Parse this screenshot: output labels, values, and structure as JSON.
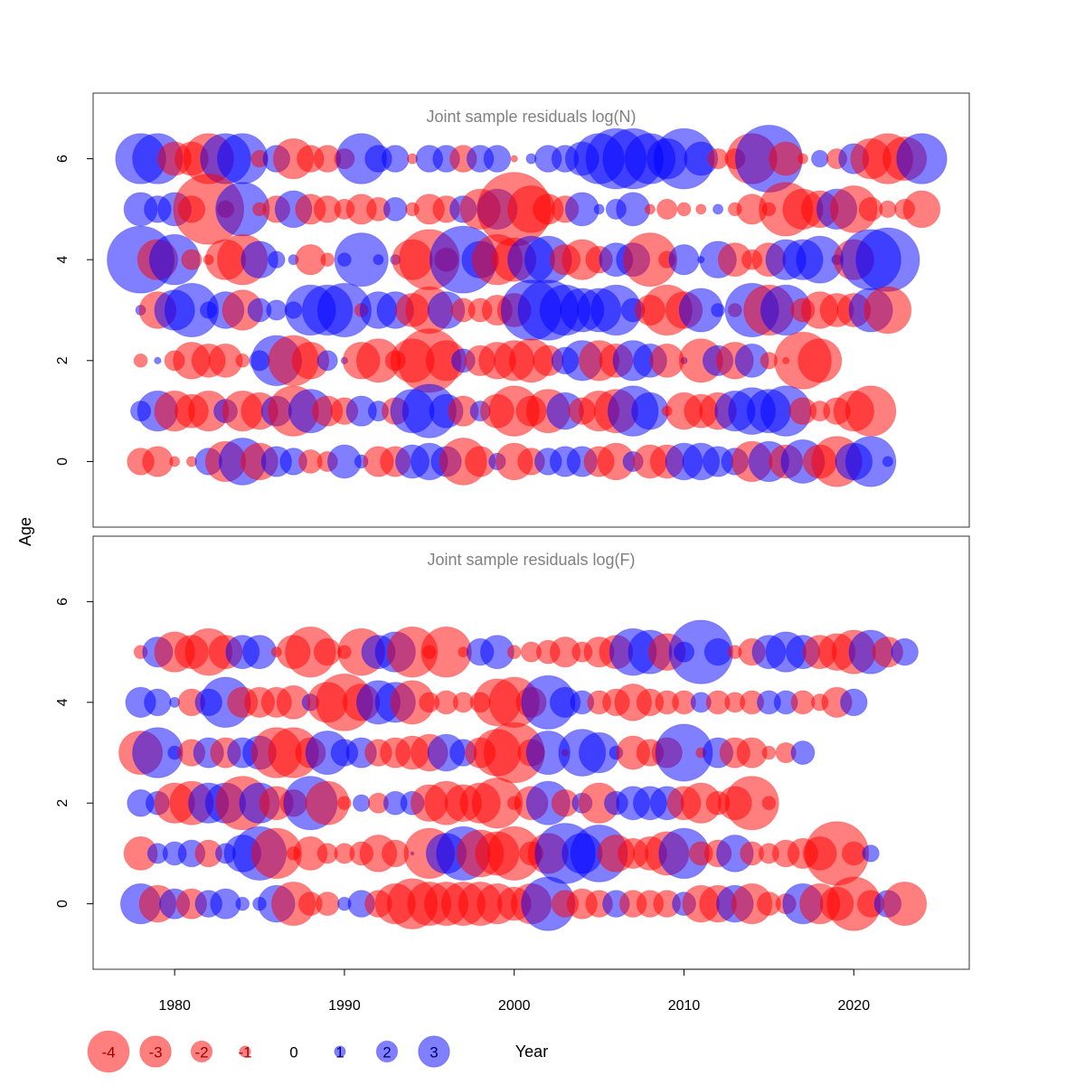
{
  "chart_data": {
    "type": "scatter",
    "subtype": "bubble-residuals",
    "xlabel": "Year",
    "ylabel": "Age",
    "x_ticks": [
      1980,
      1990,
      2000,
      2010,
      2020
    ],
    "y_ticks": [
      0,
      2,
      4,
      6
    ],
    "xlim": [
      1975.2,
      2026.8
    ],
    "ylim": [
      -1.3,
      7.3
    ],
    "grid": false,
    "colors": {
      "negative": "#ff0000",
      "positive": "#0000ff"
    },
    "size_scale_note": "circle radius proportional to |residual|",
    "legend": {
      "placement": "bottom-left",
      "entries": [
        {
          "label": "-4",
          "value": -4
        },
        {
          "label": "-3",
          "value": -3
        },
        {
          "label": "-2",
          "value": -2
        },
        {
          "label": "-1",
          "value": -1
        },
        {
          "label": "0",
          "value": 0
        },
        {
          "label": "1",
          "value": 1
        },
        {
          "label": "2",
          "value": 2
        },
        {
          "label": "3",
          "value": 3
        }
      ]
    },
    "panels": [
      {
        "title": "Joint sample residuals log(N)",
        "start_year": 1978,
        "opacity": 0.5,
        "series": [
          {
            "age": 6,
            "values": [
              1.5,
              1.5,
              -1,
              -1,
              -1.5,
              1.5,
              1.5,
              -0.5,
              0.8,
              -1.2,
              -0.8,
              -0.8,
              -0.6,
              1.5,
              0.8,
              0.8,
              -0.3,
              0.8,
              0.8,
              -0.8,
              0.8,
              0.8,
              -0.2,
              0.3,
              0.8,
              0.8,
              1,
              1.5,
              1.8,
              1.8,
              1.5,
              1.2,
              1.8,
              1,
              -0.6,
              -0.6,
              -1.5,
              2,
              -1,
              -0.3,
              0.5,
              -0.6,
              0.9,
              -1.2,
              -1.5,
              -1.3,
              1.5
            ]
          },
          {
            "age": 5,
            "values": [
              1,
              0.8,
              1,
              -0.8,
              -2.1,
              -0.5,
              1.6,
              -0.4,
              -0.8,
              1.1,
              -0.9,
              -0.8,
              -0.6,
              -0.9,
              -0.7,
              0.7,
              -0.4,
              -0.9,
              -0.8,
              0.8,
              -1.2,
              1.2,
              -2.2,
              -1.4,
              -0.9,
              -0.8,
              1,
              0.3,
              0.6,
              1,
              -0.3,
              -0.6,
              -0.4,
              -0.3,
              0.3,
              -0.4,
              -0.9,
              -0.4,
              -1.6,
              -1.2,
              -1.1,
              1.2,
              -1.4,
              -0.7,
              -0.5,
              -0.6,
              -1.1
            ]
          },
          {
            "age": 4,
            "values": [
              2,
              -1.2,
              1.5,
              -0.6,
              -0.3,
              -1.2,
              -1.5,
              1.1,
              0.5,
              0.3,
              -0.9,
              -0.4,
              0.4,
              1.6,
              0.3,
              0.3,
              -1.2,
              -1.8,
              -0.7,
              2,
              1.1,
              -1.5,
              -1.3,
              1.4,
              1.4,
              -0.9,
              -1.2,
              -0.8,
              1,
              1,
              -1.6,
              -0.5,
              0.9,
              0.2,
              1.1,
              -1,
              -0.6,
              -1,
              1.2,
              1.2,
              1.4,
              0.3,
              -1.2,
              1.8,
              1.9
            ]
          },
          {
            "age": 3,
            "values": [
              0.3,
              -1.1,
              1.2,
              1.6,
              0.5,
              1.1,
              -1.2,
              0.7,
              0.6,
              0.5,
              1.5,
              1.5,
              1.6,
              -0.4,
              1.1,
              1.1,
              -1,
              -1.4,
              1.1,
              -0.7,
              -0.7,
              -0.9,
              -1,
              1.8,
              1.8,
              1.5,
              1.3,
              1.3,
              1.5,
              0.7,
              -0.9,
              -1.5,
              -1.1,
              1.3,
              0.4,
              -0.4,
              1.6,
              -1.5,
              1.5,
              -0.7,
              -1.1,
              -1,
              -1,
              1.3,
              -1.4
            ]
          },
          {
            "age": 2,
            "values": [
              -0.4,
              0.2,
              -0.6,
              -1.1,
              -1,
              -1,
              -0.4,
              0.6,
              1.5,
              -1.5,
              -1.1,
              0.6,
              0.2,
              -1.1,
              -1.3,
              -0.6,
              -1.3,
              -1.9,
              -1.2,
              0.7,
              -0.9,
              -1.1,
              -1.2,
              -1.3,
              -0.9,
              0.8,
              1.2,
              -1.2,
              -1,
              1.2,
              1,
              -1,
              0.2,
              -1.3,
              0.9,
              -1.1,
              1,
              -0.5,
              -0.2,
              -1.7,
              -1.3
            ]
          },
          {
            "age": 1,
            "values": [
              0.6,
              1.2,
              -1.2,
              -1,
              -1.2,
              0.7,
              -1.2,
              -1.1,
              0.9,
              -1.5,
              1.3,
              -0.9,
              -0.8,
              0.9,
              0.6,
              -0.8,
              1.3,
              1.6,
              1,
              -0.9,
              0.6,
              -1,
              -1.5,
              -0.9,
              -1.3,
              1.1,
              -0.8,
              -1.2,
              -1.3,
              1.5,
              1.1,
              -0.3,
              -1.1,
              -1,
              -1.1,
              1.2,
              1.4,
              1.3,
              1.5,
              -0.8,
              -0.6,
              -0.8,
              -1.2,
              -1.5
            ]
          },
          {
            "age": 0,
            "values": [
              -0.8,
              -0.9,
              -0.3,
              -0.3,
              0.8,
              -1.2,
              1.4,
              -1.1,
              0.9,
              0.8,
              -0.7,
              -0.6,
              1,
              0.4,
              -0.9,
              -0.9,
              1,
              1.1,
              0.9,
              -1.4,
              -0.9,
              0.5,
              -1.1,
              -0.8,
              0.8,
              0.9,
              0.9,
              -0.9,
              -1.1,
              0.6,
              -1,
              -1,
              1.1,
              1.1,
              0.9,
              0.8,
              -1.2,
              1.2,
              -1,
              1.3,
              -1,
              -1.5,
              1.1,
              1.5,
              0.3
            ]
          }
        ]
      },
      {
        "title": "Joint sample residuals log(F)",
        "start_year": 1978,
        "opacity": 0.5,
        "series": [
          {
            "age": 5,
            "values": [
              -0.4,
              0.9,
              -1.2,
              -1,
              -1.4,
              -1,
              1,
              1,
              -0.3,
              -1,
              -1.5,
              -0.8,
              -0.4,
              -1.4,
              1,
              1.2,
              -1.5,
              -0.4,
              -1.5,
              -0.3,
              0.8,
              1,
              -0.4,
              -0.6,
              -0.7,
              -0.9,
              -0.6,
              -0.9,
              -1,
              1.4,
              1.3,
              -1.1,
              0.6,
              1.9,
              0.8,
              -0.4,
              -0.8,
              1,
              1.2,
              1,
              -1,
              -1.1,
              -1.3,
              1.3,
              -0.9,
              0.8
            ]
          },
          {
            "age": 4,
            "values": [
              0.9,
              0.8,
              0.3,
              -0.8,
              0.8,
              1.5,
              -0.9,
              -0.9,
              -0.9,
              -1,
              0.5,
              -1.2,
              -1.7,
              -1.1,
              1.3,
              1.2,
              -1.3,
              -0.6,
              -0.7,
              -0.6,
              -0.6,
              -1.4,
              -1.5,
              -0.9,
              1.6,
              0.9,
              0.7,
              -0.7,
              -0.8,
              -1.1,
              -0.8,
              -0.7,
              -0.7,
              0.6,
              -0.7,
              -0.6,
              -0.7,
              0.7,
              0.7,
              -0.7,
              -0.5,
              -0.9,
              0.8
            ]
          },
          {
            "age": 3,
            "values": [
              -1.3,
              1.5,
              0.4,
              -0.8,
              0.9,
              -0.9,
              0.9,
              1,
              -1.5,
              -1.5,
              -0.9,
              1.3,
              0.8,
              0.9,
              -0.8,
              -0.9,
              -1,
              -1.1,
              1.1,
              0.8,
              -0.9,
              -1.4,
              -1.8,
              -0.8,
              1.3,
              -0.2,
              1.4,
              1.2,
              0.4,
              -1,
              -0.8,
              -0.9,
              1.7,
              -0.3,
              0.9,
              -0.9,
              -0.9,
              -0.4,
              -0.6,
              0.7
            ]
          },
          {
            "age": 2,
            "values": [
              0.8,
              0.7,
              -1.2,
              -1.3,
              1.2,
              1.2,
              -1.6,
              1.2,
              -1,
              -0.8,
              1.6,
              -1.3,
              -0.4,
              0.5,
              -0.6,
              0.7,
              0.7,
              -1.1,
              -1.3,
              -1.1,
              -1.2,
              -1.5,
              -0.4,
              -1,
              1.3,
              -0.8,
              0.6,
              -1.2,
              0.7,
              1,
              1,
              1,
              -1,
              -1.2,
              -0.7,
              -1,
              -1.6,
              -0.4
            ]
          },
          {
            "age": 1,
            "values": [
              -1,
              0.6,
              0.7,
              0.8,
              -0.8,
              0.6,
              1.1,
              1.6,
              -1.5,
              -0.4,
              -1,
              -0.6,
              -0.6,
              -0.7,
              -1.1,
              -0.8,
              0.1,
              -1.5,
              1.2,
              1.6,
              -1.4,
              -1.3,
              -1.6,
              -0.7,
              -1.2,
              1.8,
              1.2,
              1.7,
              -1.1,
              -0.9,
              -1,
              -1.3,
              1.5,
              -0.7,
              -0.8,
              1.1,
              -0.7,
              -0.6,
              -0.8,
              -0.9,
              -1,
              -1.9,
              -0.7,
              0.5
            ]
          },
          {
            "age": 0,
            "values": [
              1.2,
              -1.1,
              0.9,
              -0.9,
              0.8,
              0.9,
              0.4,
              0.4,
              1.1,
              -1.3,
              -0.7,
              -0.7,
              0.4,
              0.8,
              -0.8,
              -1.2,
              -1.5,
              -1.3,
              -1.3,
              -1.3,
              -1.3,
              -1.2,
              -1,
              -1.2,
              1.6,
              -0.8,
              -0.9,
              -0.8,
              0.8,
              -0.8,
              -0.8,
              -0.8,
              0.7,
              -1.1,
              -1.1,
              1.1,
              -1.2,
              -0.7,
              -0.6,
              1.2,
              -1.2,
              -1,
              -1.6,
              -0.8,
              0.8,
              -1.3
            ]
          }
        ]
      }
    ]
  }
}
